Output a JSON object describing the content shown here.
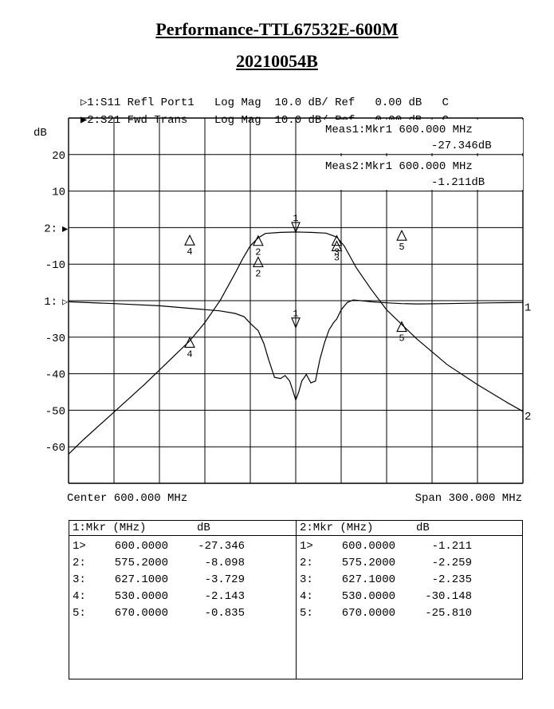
{
  "title": "Performance-TTL67532E-600M",
  "subtitle": "20210054B",
  "traces": [
    {
      "marker": "▷",
      "label": "1:S11 Refl Port1   Log Mag  10.0 dB/ Ref   0.00 dB   C"
    },
    {
      "marker": "▶",
      "label": "2:S21 Fwd Trans    Log Mag  10.0 dB/ Ref   0.00 dB   C"
    }
  ],
  "meas": [
    {
      "line1": "Meas1:Mkr1  600.000 MHz",
      "line2": "-27.346dB"
    },
    {
      "line1": "Meas2:Mkr1  600.000 MHz",
      "line2": "-1.211dB"
    }
  ],
  "footer": {
    "center": "Center 600.000 MHz",
    "span": "Span 300.000 MHz"
  },
  "tables": [
    {
      "header_mkr": "1:Mkr (MHz)",
      "header_db": "dB",
      "rows": [
        {
          "id": "1>",
          "freq": "600.0000",
          "db": "-27.346"
        },
        {
          "id": "2:",
          "freq": "575.2000",
          "db": "-8.098"
        },
        {
          "id": "3:",
          "freq": "627.1000",
          "db": "-3.729"
        },
        {
          "id": "4:",
          "freq": "530.0000",
          "db": "-2.143"
        },
        {
          "id": "5:",
          "freq": "670.0000",
          "db": "-0.835"
        }
      ]
    },
    {
      "header_mkr": "2:Mkr (MHz)",
      "header_db": "dB",
      "rows": [
        {
          "id": "1>",
          "freq": "600.0000",
          "db": "-1.211"
        },
        {
          "id": "2:",
          "freq": "575.2000",
          "db": "-2.259"
        },
        {
          "id": "3:",
          "freq": "627.1000",
          "db": "-2.235"
        },
        {
          "id": "4:",
          "freq": "530.0000",
          "db": "-30.148"
        },
        {
          "id": "5:",
          "freq": "670.0000",
          "db": "-25.810"
        }
      ]
    }
  ],
  "chart_data": {
    "type": "line",
    "ylabel": "dB",
    "xlim": [
      450,
      750
    ],
    "ylim": [
      -70,
      30
    ],
    "grid": true,
    "y_ticks": [
      {
        "label": "20",
        "value": 20
      },
      {
        "label": "10",
        "value": 10
      },
      {
        "label": "2:",
        "value": 0,
        "marker": "▶"
      },
      {
        "label": "-10",
        "value": -10
      },
      {
        "label": "1:",
        "value": -20,
        "marker": "▷"
      },
      {
        "label": "-30",
        "value": -30
      },
      {
        "label": "-40",
        "value": -40
      },
      {
        "label": "-50",
        "value": -50
      },
      {
        "label": "-60",
        "value": -60
      }
    ],
    "series": [
      {
        "end_label": "1",
        "x": [
          450,
          480,
          510,
          530,
          550,
          560,
          566,
          570,
          575.2,
          579,
          582,
          586,
          590,
          593,
          596,
          598,
          600,
          602,
          604,
          607,
          610,
          613,
          616,
          619,
          622,
          625,
          627.1,
          630,
          634,
          638,
          643,
          650,
          660,
          670,
          680,
          700,
          730,
          750
        ],
        "y": [
          -20.3,
          -20.8,
          -21.4,
          -22.1,
          -22.8,
          -23.5,
          -24.4,
          -26.2,
          -28.2,
          -31.8,
          -36.0,
          -41.0,
          -41.3,
          -40.5,
          -42.0,
          -44.5,
          -47.2,
          -45.0,
          -42.0,
          -40.2,
          -42.5,
          -42.0,
          -36.0,
          -31.5,
          -28.0,
          -26.0,
          -25.0,
          -22.5,
          -20.5,
          -19.8,
          -20.0,
          -20.3,
          -20.6,
          -20.8,
          -20.9,
          -20.8,
          -20.6,
          -20.5
        ]
      },
      {
        "end_label": "2",
        "x": [
          450,
          460,
          480,
          500,
          520,
          530,
          540,
          550,
          560,
          565,
          570,
          575.2,
          580,
          590,
          600,
          610,
          620,
          627.1,
          632,
          636,
          640,
          650,
          660,
          670,
          680,
          700,
          720,
          740,
          750
        ],
        "y": [
          -62.0,
          -58.0,
          -50.5,
          -43.0,
          -35.0,
          -31.0,
          -26.0,
          -20.0,
          -12.5,
          -8.5,
          -5.0,
          -2.8,
          -1.6,
          -1.3,
          -1.2,
          -1.3,
          -1.5,
          -2.6,
          -5.0,
          -8.0,
          -11.0,
          -17.0,
          -22.5,
          -26.5,
          -30.5,
          -37.5,
          -43.0,
          -48.0,
          -50.3
        ]
      }
    ],
    "markers": [
      {
        "series": 1,
        "label": "1",
        "x": 600,
        "y": -27.346
      },
      {
        "series": 1,
        "label": "2",
        "x": 575.2,
        "y": -8.098
      },
      {
        "series": 1,
        "label": "3",
        "x": 627.1,
        "y": -3.729
      },
      {
        "series": 1,
        "label": "4",
        "x": 530,
        "y": -2.143
      },
      {
        "series": 1,
        "label": "5",
        "x": 670,
        "y": -0.835
      },
      {
        "series": 2,
        "label": "1",
        "x": 600,
        "y": -1.211
      },
      {
        "series": 2,
        "label": "2",
        "x": 575.2,
        "y": -2.259
      },
      {
        "series": 2,
        "label": "3",
        "x": 627.1,
        "y": -2.235
      },
      {
        "series": 2,
        "label": "4",
        "x": 530,
        "y": -30.148
      },
      {
        "series": 2,
        "label": "5",
        "x": 670,
        "y": -25.81
      }
    ]
  }
}
